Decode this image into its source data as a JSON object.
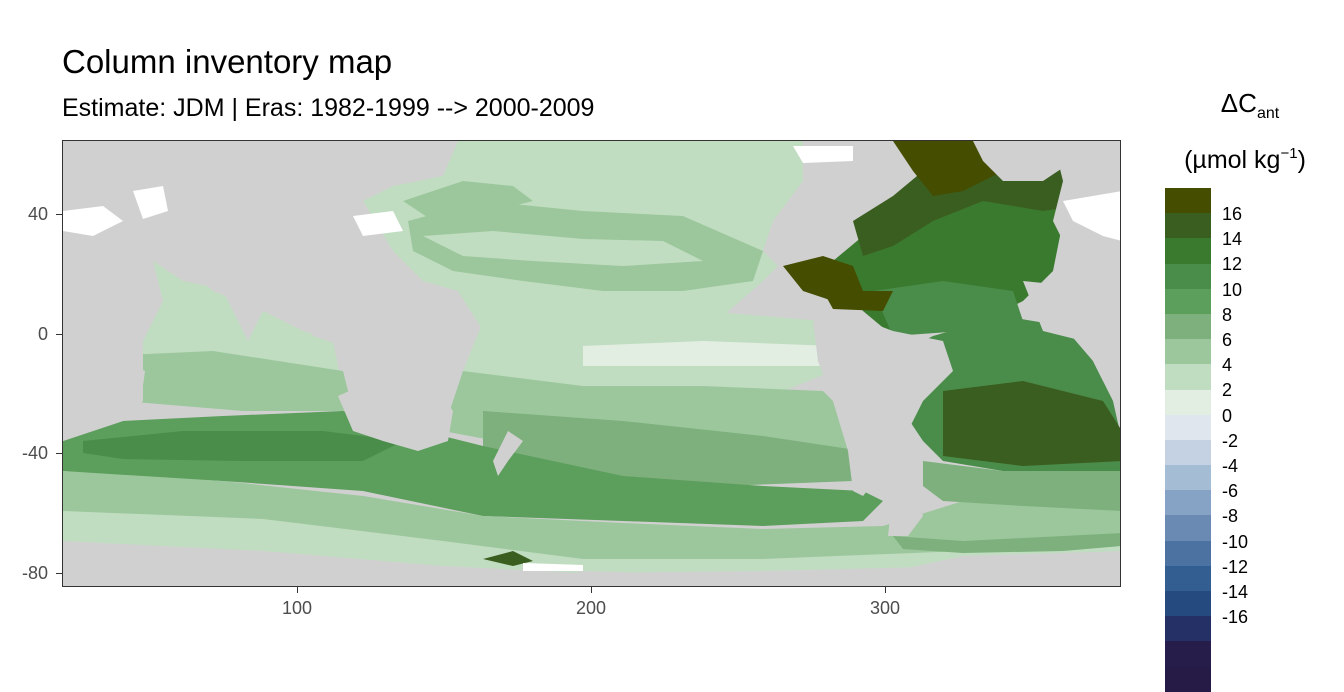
{
  "title": "Column inventory map",
  "subtitle": "Estimate: JDM  | Eras: 1982-1999 --> 2000-2009",
  "legend": {
    "title_main": "ΔC",
    "title_sub": "ant",
    "unit_main": "(µmol kg",
    "unit_sup": "−1",
    "unit_end": ")",
    "swatch_colors": [
      "#454d00",
      "#3a5e1f",
      "#3a7a2e",
      "#4a8c4a",
      "#5c9e5c",
      "#7db07d",
      "#9cc79c",
      "#c1ddc1",
      "#e2eee2",
      "#dfe6ee",
      "#c4d2e3",
      "#a5bcd5",
      "#86a2c4",
      "#6a8ab3",
      "#4c72a1",
      "#335e91",
      "#244a80",
      "#253067",
      "#271d4b",
      "#261a47"
    ],
    "tick_labels": [
      "16",
      "14",
      "12",
      "10",
      "8",
      "6",
      "4",
      "2",
      "0",
      "-2",
      "-4",
      "-6",
      "-8",
      "-10",
      "-12",
      "-14",
      "-16"
    ]
  },
  "axes": {
    "x_ticks": [
      "100",
      "200",
      "300"
    ],
    "y_ticks": [
      "40",
      "0",
      "-40",
      "-80"
    ]
  },
  "chart_data": {
    "type": "heatmap",
    "title": "Column inventory map",
    "subtitle": "Estimate: JDM  | Eras: 1982-1999 --> 2000-2009",
    "x_range": [
      20,
      380
    ],
    "y_range": [
      -85,
      65
    ],
    "x_ticks": [
      100,
      200,
      300
    ],
    "y_ticks": [
      40,
      0,
      -40,
      -80
    ],
    "colorbar": {
      "title": "ΔCant (µmol kg−1)",
      "range": [
        -18,
        18
      ],
      "breaks": [
        16,
        14,
        12,
        10,
        8,
        6,
        4,
        2,
        0,
        -2,
        -4,
        -6,
        -8,
        -10,
        -12,
        -14,
        -16
      ]
    },
    "land_color": "#d0d0d0",
    "grid": false
  }
}
